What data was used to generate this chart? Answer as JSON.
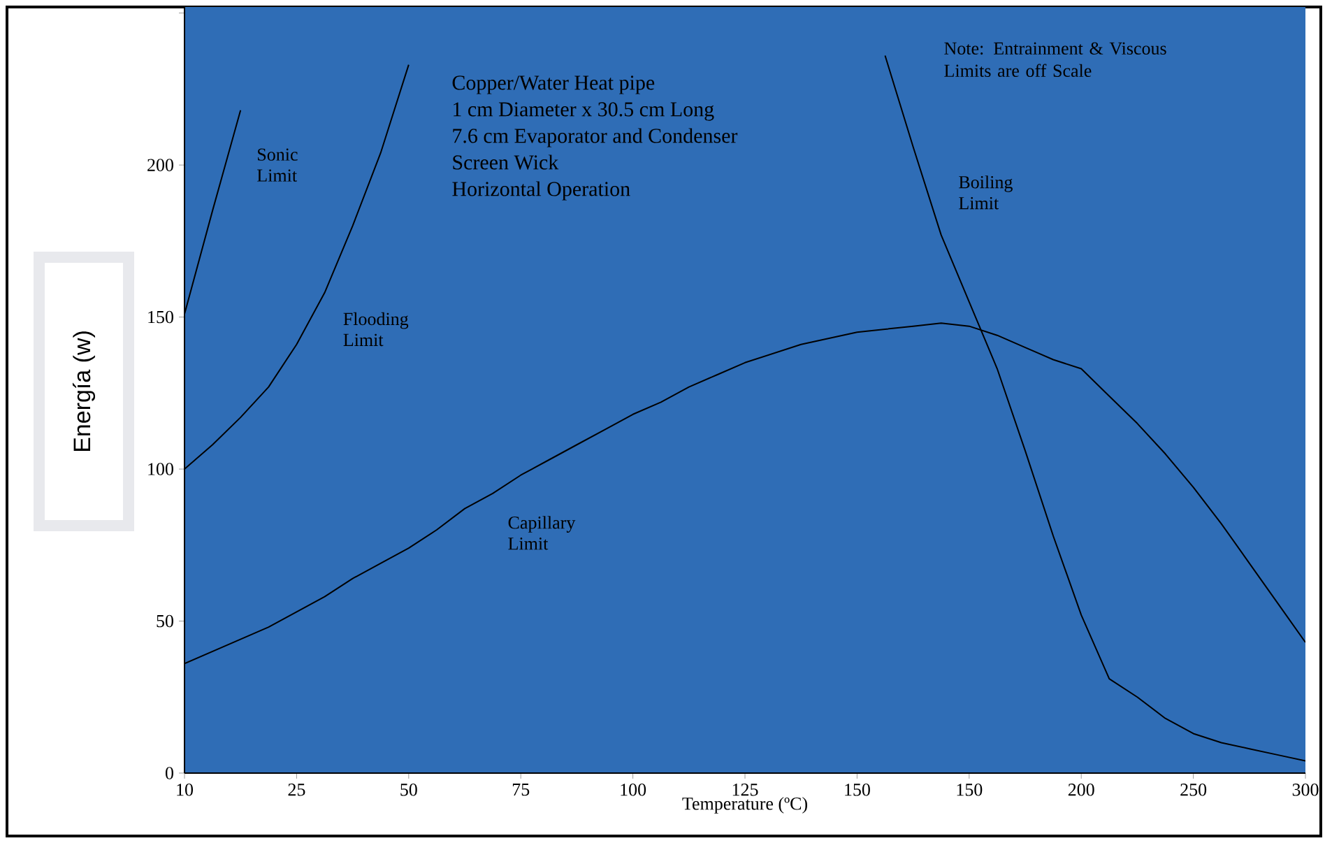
{
  "chart_data": {
    "type": "line",
    "xlabel": "Temperature (ºC)",
    "ylabel": "Energía (w)",
    "categories": [
      "10",
      null,
      null,
      null,
      "25",
      null,
      null,
      null,
      "50",
      null,
      null,
      null,
      "75",
      null,
      null,
      null,
      "100",
      null,
      null,
      null,
      "125",
      null,
      null,
      null,
      "150",
      null,
      null,
      null,
      "150",
      null,
      null,
      null,
      "200",
      null,
      null,
      null,
      "250",
      null,
      null,
      null,
      "300"
    ],
    "ylim": [
      0,
      252
    ],
    "yticks": [
      0,
      50,
      100,
      150,
      200,
      {
        "value": 250,
        "label": null
      }
    ],
    "series": [
      {
        "name": "Sonic Limit",
        "color": "#000000",
        "values": [
          151,
          185,
          218,
          null,
          null,
          null,
          null,
          null,
          null,
          null,
          null,
          null,
          null,
          null,
          null,
          null,
          null,
          null,
          null,
          null,
          null,
          null,
          null,
          null,
          null,
          null,
          null,
          null,
          null,
          null,
          null,
          null,
          null,
          null,
          null,
          null,
          null,
          null,
          null,
          null,
          null
        ]
      },
      {
        "name": "Flooding Limit",
        "color": "#000000",
        "values": [
          100,
          108,
          117,
          127,
          141,
          158,
          180,
          204,
          233,
          null,
          null,
          null,
          null,
          null,
          null,
          null,
          null,
          null,
          null,
          null,
          null,
          null,
          null,
          null,
          null,
          null,
          null,
          null,
          null,
          null,
          null,
          null,
          null,
          null,
          null,
          null,
          null,
          null,
          null,
          null,
          null
        ]
      },
      {
        "name": "Capillary Limit",
        "color": "#000000",
        "values": [
          36,
          40,
          44,
          48,
          53,
          58,
          64,
          69,
          74,
          80,
          87,
          92,
          98,
          103,
          108,
          113,
          118,
          122,
          127,
          131,
          135,
          138,
          141,
          143,
          145,
          146,
          147,
          148,
          147,
          144,
          140,
          136,
          133,
          124,
          115,
          105,
          94,
          82,
          69,
          56,
          43
        ]
      },
      {
        "name": "Boiling Limit",
        "color": "#000000",
        "values": [
          null,
          null,
          null,
          null,
          null,
          null,
          null,
          null,
          null,
          null,
          null,
          null,
          null,
          null,
          null,
          null,
          null,
          null,
          null,
          null,
          null,
          null,
          null,
          null,
          null,
          236,
          206,
          177,
          155,
          133,
          106,
          78,
          52,
          31,
          25,
          18,
          13,
          10,
          8,
          6,
          4
        ]
      }
    ],
    "annotations": [
      "Copper/Water Heat pipe",
      "1 cm Diameter x 30.5 cm Long",
      "7.6 cm Evaporator and Condenser",
      "Screen Wick",
      "Horizontal Operation",
      "Note: Entrainment & Viscous Limits are off Scale"
    ],
    "grid": false,
    "marker": "none",
    "line_style": "solid"
  }
}
